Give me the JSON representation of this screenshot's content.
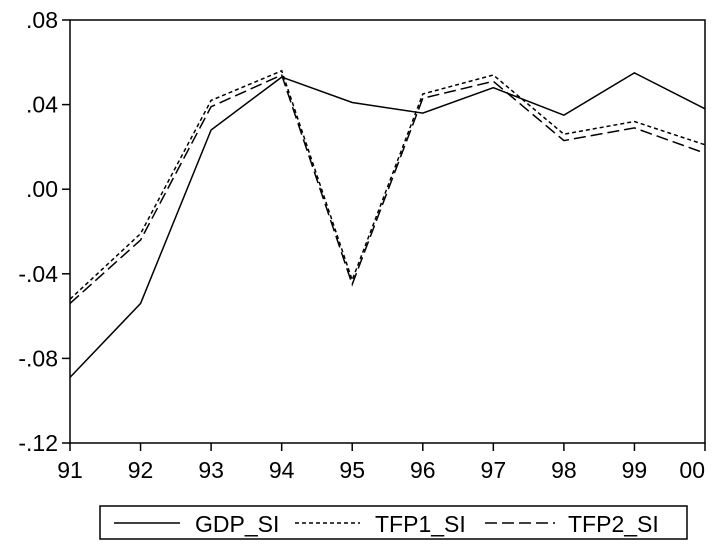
{
  "chart_data": {
    "type": "line",
    "title": "",
    "xlabel": "",
    "ylabel": "",
    "categories": [
      "91",
      "92",
      "93",
      "94",
      "95",
      "96",
      "97",
      "98",
      "99",
      "00"
    ],
    "ylim": [
      -0.12,
      0.08
    ],
    "yticks": [
      ".08",
      ".04",
      ".00",
      "-.04",
      "-.08",
      "-.12"
    ],
    "ytick_values": [
      0.08,
      0.04,
      0.0,
      -0.04,
      -0.08,
      -0.12
    ],
    "grid": false,
    "legend_position": "bottom",
    "series": [
      {
        "name": "GDP_SI",
        "style": "solid",
        "values": [
          -0.089,
          -0.054,
          0.028,
          0.053,
          0.041,
          0.036,
          0.048,
          0.035,
          0.055,
          0.038
        ]
      },
      {
        "name": "TFP1_SI",
        "style": "short-dash",
        "values": [
          -0.052,
          -0.021,
          0.042,
          0.056,
          -0.043,
          0.045,
          0.054,
          0.026,
          0.032,
          0.021
        ]
      },
      {
        "name": "TFP2_SI",
        "style": "long-dash",
        "values": [
          -0.054,
          -0.024,
          0.039,
          0.054,
          -0.045,
          0.043,
          0.051,
          0.023,
          0.029,
          0.017
        ]
      }
    ],
    "colors": {
      "line": "#000000",
      "background": "#ffffff"
    }
  }
}
